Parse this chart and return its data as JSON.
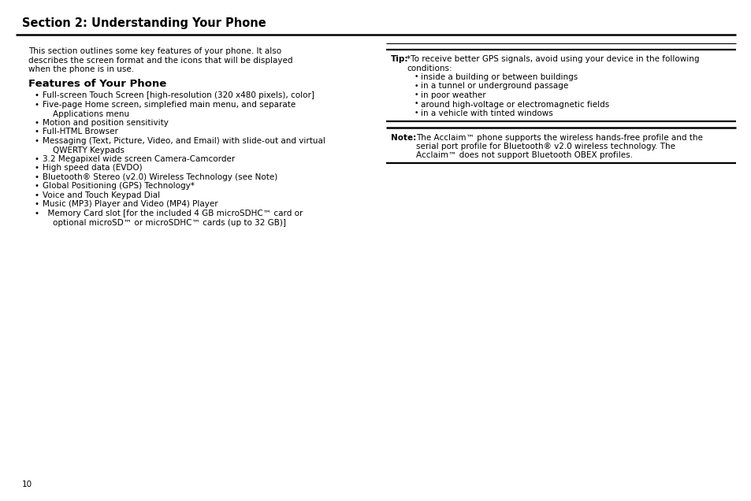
{
  "bg_color": "#ffffff",
  "title": "Section 2: Understanding Your Phone",
  "page_number": "10",
  "intro_lines": [
    "This section outlines some key features of your phone. It also",
    "describes the screen format and the icons that will be displayed",
    "when the phone is in use."
  ],
  "features_heading": "Features of Your Phone",
  "bullet_items": [
    "Full-screen Touch Screen [high-resolution (320 x480 pixels), color]",
    "Five-page Home screen, simplefied main menu, and separate",
    "    Applications menu",
    "Motion and position sensitivity",
    "Full-HTML Browser",
    "Messaging (Text, Picture, Video, and Email) with slide-out and virtual",
    "    QWERTY Keypads",
    "3.2 Megapixel wide screen Camera-Camcorder",
    "High speed data (EVDO)",
    "Bluetooth® Stereo (v2.0) Wireless Technology (see Note)",
    "Global Positioning (GPS) Technology*",
    "Voice and Touch Keypad Dial",
    "Music (MP3) Player and Video (MP4) Player",
    "  Memory Card slot [for the included 4 GB microSDHC™ card or",
    "    optional microSD™ or microSDHC™ cards (up to 32 GB)]"
  ],
  "bullet_has_dot": [
    true,
    true,
    false,
    true,
    true,
    true,
    false,
    true,
    true,
    true,
    true,
    true,
    true,
    true,
    false
  ],
  "tip_label": "Tip:",
  "tip_line1": "*To receive better GPS signals, avoid using your device in the following",
  "tip_line2": "conditions:",
  "tip_bullets": [
    "inside a building or between buildings",
    "in a tunnel or underground passage",
    "in poor weather",
    "around high-voltage or electromagnetic fields",
    "in a vehicle with tinted windows"
  ],
  "note_label": "Note:",
  "note_lines": [
    "The Acclaim™ phone supports the wireless hands-free profile and the",
    "serial port profile for Bluetooth® v2.0 wireless technology. The",
    "Acclaim™ does not support Bluetooth OBEX profiles."
  ],
  "text_color": "#000000",
  "font_size": 7.5,
  "title_fontsize": 10.5,
  "features_fontsize": 9.5
}
